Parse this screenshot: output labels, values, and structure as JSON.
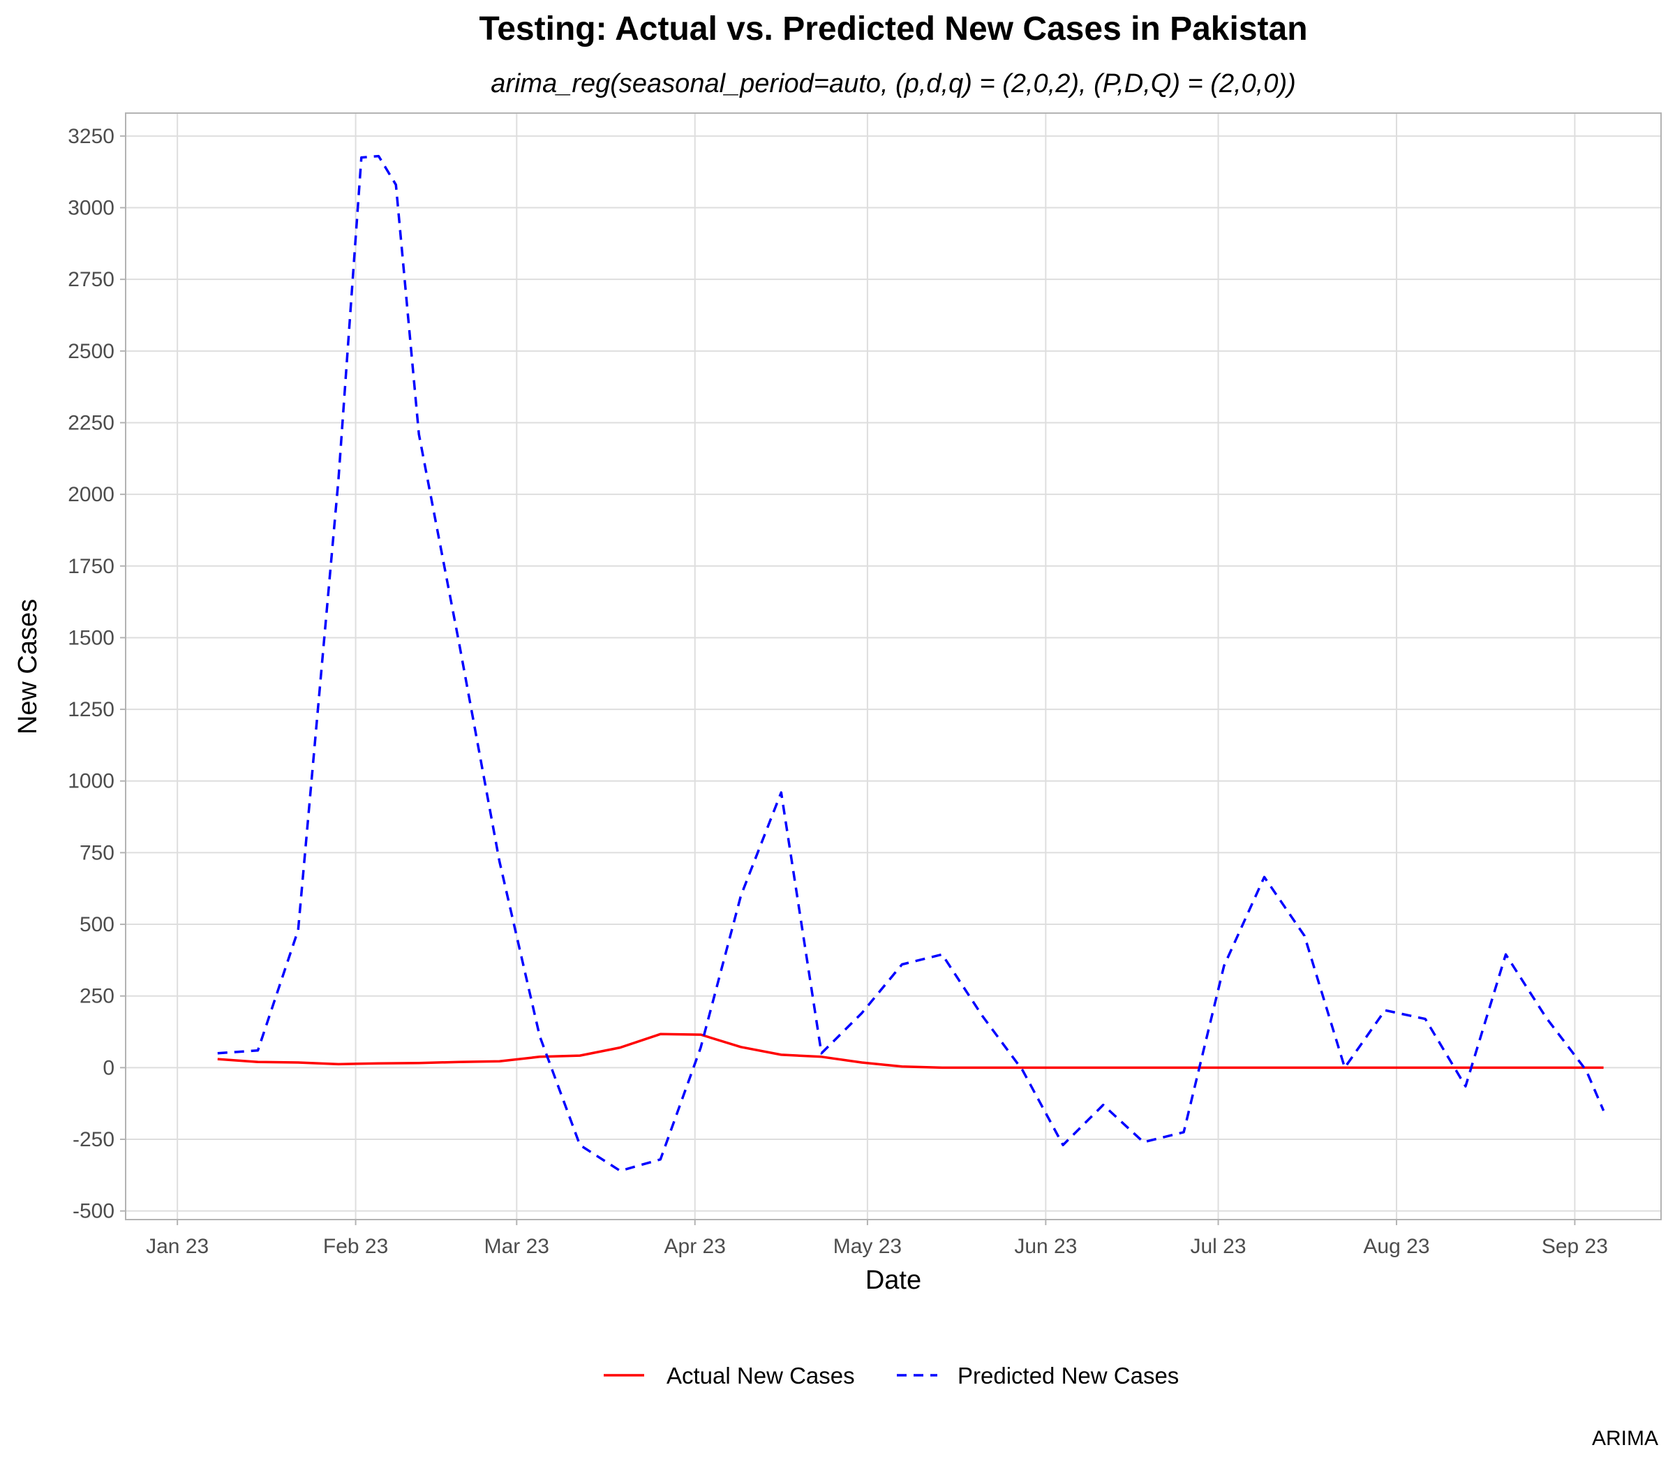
{
  "chart_data": {
    "type": "line",
    "title": "Testing: Actual vs. Predicted New Cases in Pakistan",
    "subtitle": "arima_reg(seasonal_period=auto, (p,d,q) = (2,0,2), (P,D,Q) = (2,0,0))",
    "xlabel": "Date",
    "ylabel": "New Cases",
    "caption": "ARIMA",
    "x_ticks": [
      "Jan 23",
      "Feb 23",
      "Mar 23",
      "Apr 23",
      "May 23",
      "Jun 23",
      "Jul 23",
      "Aug 23",
      "Sep 23"
    ],
    "y_ticks": [
      "-500",
      "-250",
      "0",
      "250",
      "500",
      "750",
      "1000",
      "1250",
      "1500",
      "1750",
      "2000",
      "2250",
      "2500",
      "2750",
      "3000",
      "3250"
    ],
    "ylim": [
      -530,
      3330
    ],
    "xlim": [
      "2022-12-23",
      "2023-09-16"
    ],
    "grid": true,
    "legend_position": "bottom",
    "series": [
      {
        "name": "Actual New Cases",
        "color": "#ff0000",
        "dash": "solid",
        "points": [
          [
            "2023-01-08",
            30
          ],
          [
            "2023-01-15",
            20
          ],
          [
            "2023-01-22",
            18
          ],
          [
            "2023-01-29",
            12
          ],
          [
            "2023-02-05",
            15
          ],
          [
            "2023-02-12",
            16
          ],
          [
            "2023-02-19",
            20
          ],
          [
            "2023-02-26",
            22
          ],
          [
            "2023-03-05",
            38
          ],
          [
            "2023-03-12",
            42
          ],
          [
            "2023-03-19",
            70
          ],
          [
            "2023-03-26",
            117
          ],
          [
            "2023-04-02",
            115
          ],
          [
            "2023-04-09",
            72
          ],
          [
            "2023-04-16",
            45
          ],
          [
            "2023-04-23",
            38
          ],
          [
            "2023-04-30",
            18
          ],
          [
            "2023-05-07",
            4
          ],
          [
            "2023-05-14",
            0
          ],
          [
            "2023-05-21",
            0
          ],
          [
            "2023-05-28",
            0
          ],
          [
            "2023-06-04",
            0
          ],
          [
            "2023-06-11",
            0
          ],
          [
            "2023-06-18",
            0
          ],
          [
            "2023-06-25",
            0
          ],
          [
            "2023-07-02",
            0
          ],
          [
            "2023-07-09",
            0
          ],
          [
            "2023-07-16",
            0
          ],
          [
            "2023-07-23",
            0
          ],
          [
            "2023-07-30",
            0
          ],
          [
            "2023-08-06",
            0
          ],
          [
            "2023-08-13",
            0
          ],
          [
            "2023-08-20",
            0
          ],
          [
            "2023-08-27",
            0
          ],
          [
            "2023-09-03",
            0
          ],
          [
            "2023-09-06",
            0
          ]
        ]
      },
      {
        "name": "Predicted New Cases",
        "color": "#0000ff",
        "dash": "dashed",
        "points": [
          [
            "2023-01-08",
            50
          ],
          [
            "2023-01-15",
            60
          ],
          [
            "2023-01-22",
            480
          ],
          [
            "2023-01-29",
            2050
          ],
          [
            "2023-02-02",
            3175
          ],
          [
            "2023-02-05",
            3180
          ],
          [
            "2023-02-08",
            3080
          ],
          [
            "2023-02-12",
            2210
          ],
          [
            "2023-02-19",
            1480
          ],
          [
            "2023-02-26",
            720
          ],
          [
            "2023-03-05",
            110
          ],
          [
            "2023-03-12",
            -270
          ],
          [
            "2023-03-19",
            -360
          ],
          [
            "2023-03-26",
            -320
          ],
          [
            "2023-04-02",
            70
          ],
          [
            "2023-04-09",
            600
          ],
          [
            "2023-04-16",
            960
          ],
          [
            "2023-04-23",
            50
          ],
          [
            "2023-04-30",
            190
          ],
          [
            "2023-05-07",
            360
          ],
          [
            "2023-05-14",
            395
          ],
          [
            "2023-05-21",
            180
          ],
          [
            "2023-05-28",
            -10
          ],
          [
            "2023-06-04",
            -270
          ],
          [
            "2023-06-11",
            -130
          ],
          [
            "2023-06-18",
            -260
          ],
          [
            "2023-06-25",
            -225
          ],
          [
            "2023-07-02",
            355
          ],
          [
            "2023-07-09",
            665
          ],
          [
            "2023-07-16",
            460
          ],
          [
            "2023-07-23",
            0
          ],
          [
            "2023-07-30",
            200
          ],
          [
            "2023-08-06",
            170
          ],
          [
            "2023-08-13",
            -65
          ],
          [
            "2023-08-20",
            395
          ],
          [
            "2023-08-27",
            175
          ],
          [
            "2023-09-03",
            -10
          ],
          [
            "2023-09-06",
            -150
          ]
        ]
      }
    ]
  }
}
